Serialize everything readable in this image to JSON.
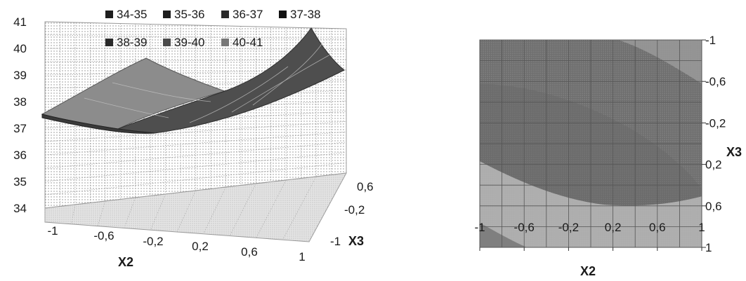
{
  "chart_data": [
    {
      "type": "surface",
      "zlim": [
        34,
        41
      ],
      "z_ticks": [
        "34",
        "35",
        "36",
        "37",
        "38",
        "39",
        "40",
        "41"
      ],
      "x_ticks": [
        "-1",
        "-0,6",
        "-0,2",
        "0,2",
        "0,6",
        "1"
      ],
      "y_ticks": [
        "-1",
        "-0,2",
        "0,6"
      ],
      "xlabel": "X2",
      "ylabel": "X3",
      "legend": [
        {
          "label": "34-35",
          "color": "#1e1e1e"
        },
        {
          "label": "35-36",
          "color": "#1e1e1e"
        },
        {
          "label": "36-37",
          "color": "#2a2a2a"
        },
        {
          "label": "37-38",
          "color": "#111111"
        },
        {
          "label": "38-39",
          "color": "#2a2a2a"
        },
        {
          "label": "39-40",
          "color": "#4a4a4a"
        },
        {
          "label": "40-41",
          "color": "#777777"
        }
      ],
      "legend_position": "top",
      "grid": true,
      "surface_corners": {
        "x2=-1,x3=-1": 37.6,
        "x2=1,x3=-1": 38.7,
        "x2=-1,x3=1": 39.7,
        "x2=1,x3=1": 40.9
      },
      "surface_minimum": 37.1
    },
    {
      "type": "contour",
      "x_ticks": [
        "-1",
        "-0,6",
        "-0,2",
        "0,2",
        "0,6",
        "1"
      ],
      "y_ticks": [
        "-1",
        "-0,6",
        "-0,2",
        "0,2",
        "0,6",
        "1"
      ],
      "xlabel": "X2",
      "ylabel": "X3",
      "grid": true
    }
  ]
}
